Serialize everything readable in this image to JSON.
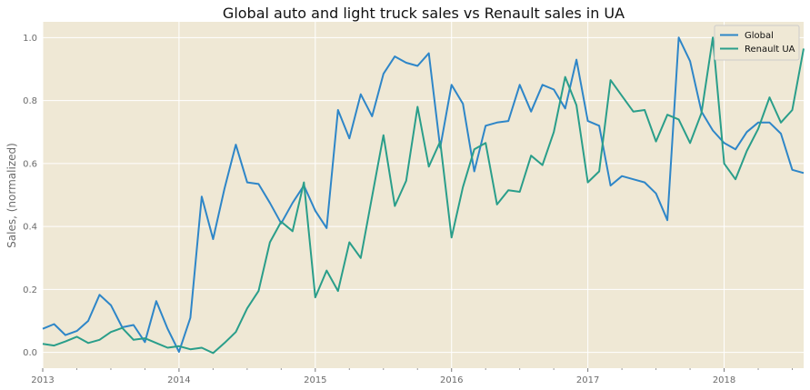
{
  "chart_data": {
    "type": "line",
    "title": "Global auto and light truck sales vs Renault sales in UA",
    "xlabel": "",
    "ylabel": "Sales, (normalized)",
    "x_start": "2013-01",
    "x_ticks": [
      "2013",
      "2014",
      "2015",
      "2016",
      "2017",
      "2018"
    ],
    "y_ticks": [
      "0.0",
      "0.2",
      "0.4",
      "0.6",
      "0.8",
      "1.0"
    ],
    "xlim": [
      "2013-01",
      "2018-08"
    ],
    "ylim": [
      -0.05,
      1.05
    ],
    "grid": true,
    "legend_position": "top-right",
    "colors": {
      "background": "#efe8d5",
      "grid": "#ffffff",
      "global": "#2e86c8",
      "renault": "#2a9e8a"
    },
    "series": [
      {
        "name": "Global",
        "values": [
          0.075,
          0.09,
          0.055,
          0.068,
          0.1,
          0.183,
          0.15,
          0.08,
          0.087,
          0.033,
          0.163,
          0.075,
          0.002,
          0.11,
          0.495,
          0.36,
          0.52,
          0.66,
          0.54,
          0.535,
          0.475,
          0.41,
          0.475,
          0.53,
          0.45,
          0.395,
          0.77,
          0.68,
          0.82,
          0.75,
          0.885,
          0.94,
          0.92,
          0.91,
          0.95,
          0.65,
          0.85,
          0.79,
          0.575,
          0.72,
          0.73,
          0.735,
          0.85,
          0.765,
          0.85,
          0.835,
          0.775,
          0.93,
          0.735,
          0.72,
          0.53,
          0.56,
          0.55,
          0.54,
          0.505,
          0.42,
          1.0,
          0.925,
          0.765,
          0.705,
          0.665,
          0.645,
          0.7,
          0.73,
          0.73,
          0.695,
          0.58,
          0.57
        ]
      },
      {
        "name": "Renault UA",
        "values": [
          0.027,
          0.022,
          0.035,
          0.05,
          0.03,
          0.04,
          0.065,
          0.078,
          0.04,
          0.045,
          0.03,
          0.015,
          0.02,
          0.01,
          0.015,
          -0.002,
          0.03,
          0.065,
          0.14,
          0.195,
          0.35,
          0.415,
          0.385,
          0.54,
          0.175,
          0.26,
          0.195,
          0.35,
          0.3,
          0.495,
          0.69,
          0.465,
          0.545,
          0.78,
          0.59,
          0.67,
          0.365,
          0.525,
          0.645,
          0.665,
          0.47,
          0.515,
          0.51,
          0.625,
          0.595,
          0.7,
          0.875,
          0.785,
          0.54,
          0.575,
          0.865,
          0.815,
          0.765,
          0.77,
          0.67,
          0.755,
          0.74,
          0.665,
          0.76,
          1.0,
          0.6,
          0.55,
          0.64,
          0.71,
          0.81,
          0.73,
          0.77,
          0.965
        ]
      }
    ]
  }
}
